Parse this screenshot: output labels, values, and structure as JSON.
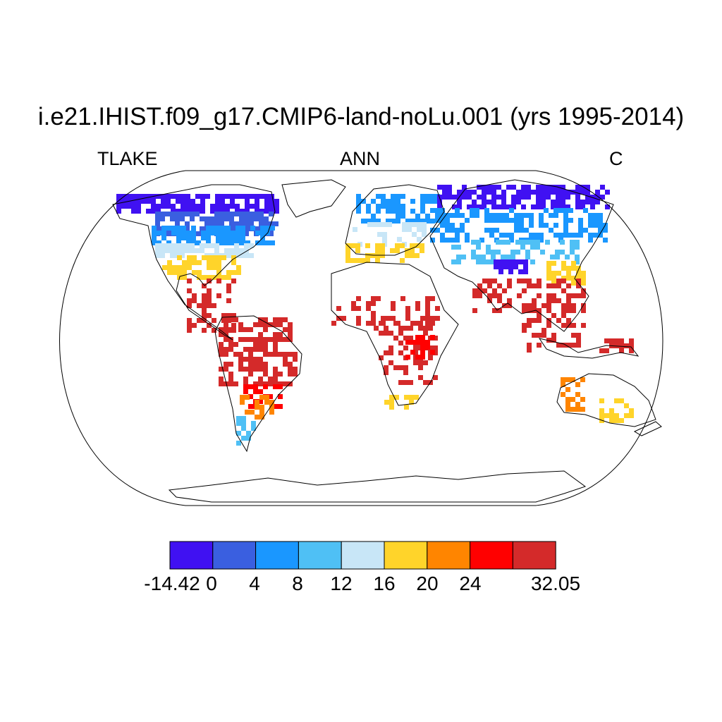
{
  "title": "i.e21.IHIST.f09_g17.CMIP6-land-noLu.001 (yrs 1995-2014)",
  "left_label": "TLAKE",
  "center_label": "ANN",
  "right_label": "C",
  "colorbar": {
    "colors": [
      "#4011f2",
      "#3a5fe0",
      "#1a97ff",
      "#4fc0f5",
      "#c8e6f7",
      "#ffd42a",
      "#ff8500",
      "#ff0000",
      "#d42a2a"
    ],
    "labels": [
      "-14.42",
      "0",
      "4",
      "8",
      "12",
      "16",
      "20",
      "24",
      "32.05"
    ]
  }
}
